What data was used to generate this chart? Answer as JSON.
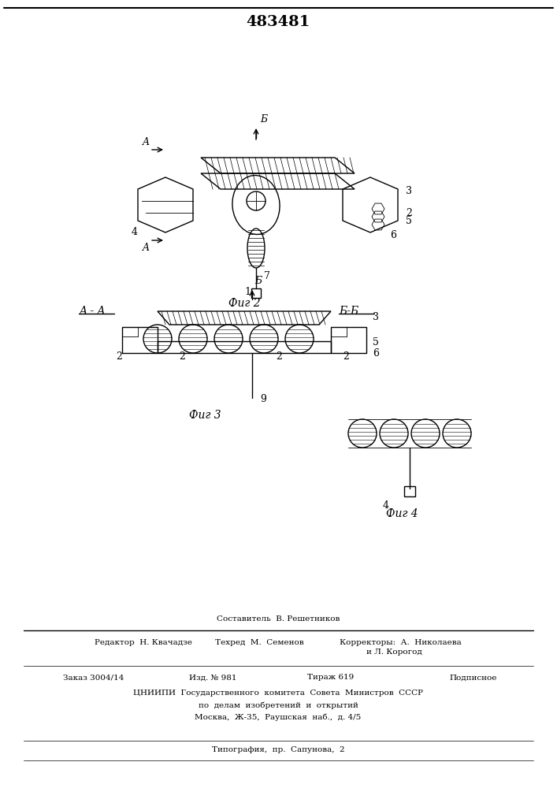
{
  "patent_number": "483481",
  "background_color": "#ffffff",
  "line_color": "#000000",
  "hatch_color": "#000000",
  "title_fontsize": 14,
  "label_fontsize": 9,
  "fig2_label": "Фиг 2",
  "fig3_label": "Фиг 3",
  "fig4_label": "Фиг 4",
  "section_aa": "A - A",
  "section_bb": "Б-Б",
  "footer_line1": "Составитель  В. Решетников",
  "footer_line2": "Редактор  Н. Квачадзе         Техред  М.  Семенов              Корректоры:  А.  Николаева",
  "footer_line3": "                                                                                                  и Л. Корогод",
  "footer_line4": "Заказ 3004/14            Изд. № 981              Тираж 619                   Подписное",
  "footer_line5": "   ЦНИИПИ  Государственного  комитета  Совета  Министров  СССР",
  "footer_line6": "                по  делам  изобретений  и  открытий",
  "footer_line7": "             Москва,  Ж-35,  Раушская  наб.,  д. 4/5",
  "footer_line8": "Типография,  пр.  Сапунова,  2"
}
